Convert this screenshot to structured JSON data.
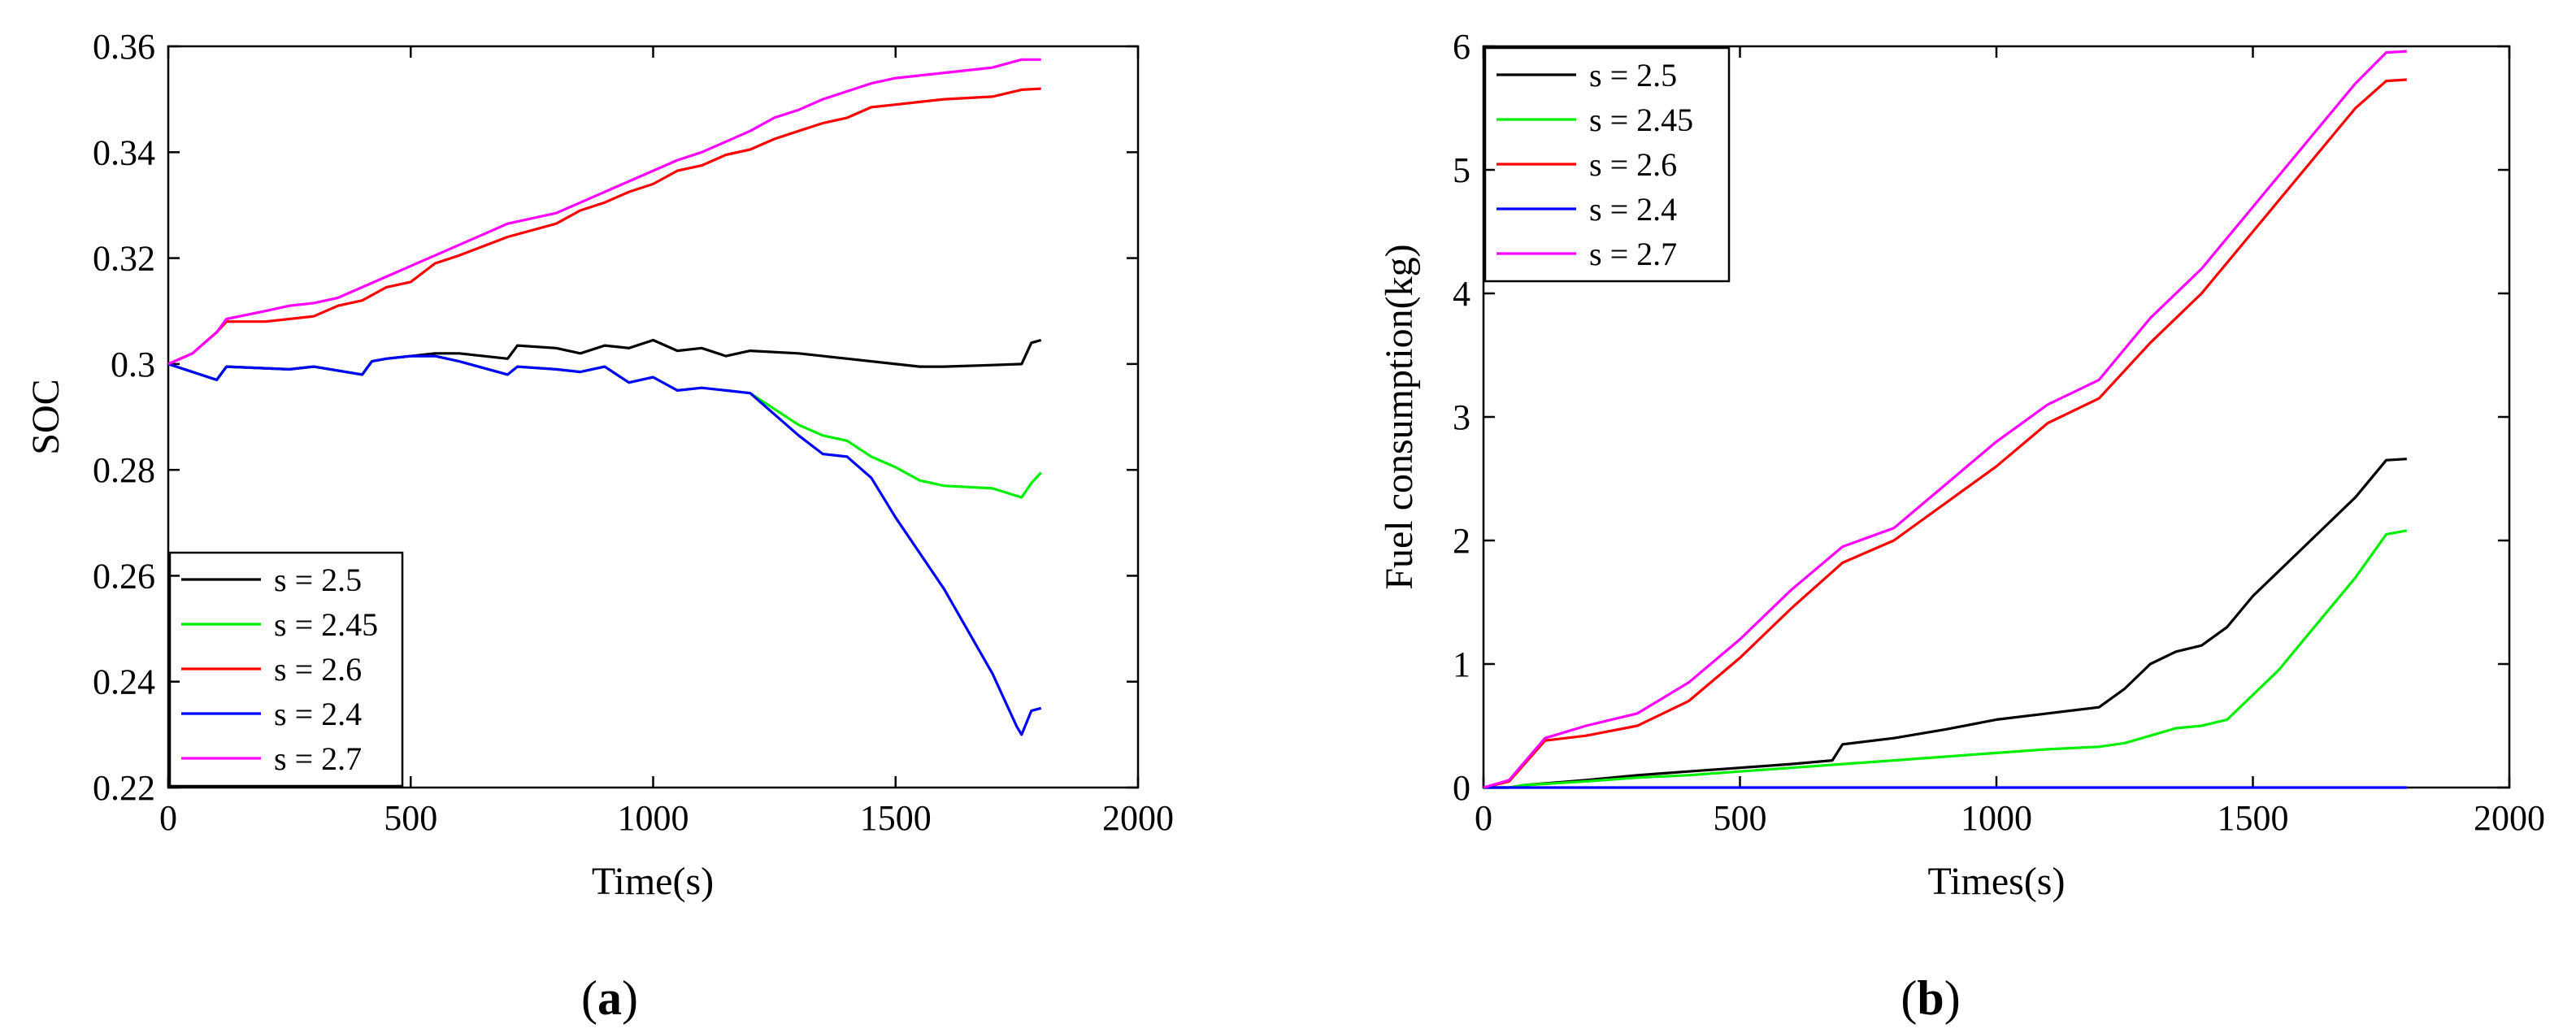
{
  "chart_data": [
    {
      "type": "line",
      "panel": "a",
      "caption_open": "(",
      "caption_letter": "a",
      "caption_close": ")",
      "xlabel": "Time(s)",
      "ylabel": "SOC",
      "xlim": [
        0,
        2000
      ],
      "ylim": [
        0.22,
        0.36
      ],
      "xticks": [
        0,
        500,
        1000,
        1500,
        2000
      ],
      "yticks": [
        0.22,
        0.24,
        0.26,
        0.28,
        0.3,
        0.32,
        0.34,
        0.36
      ],
      "xtick_labels": [
        "0",
        "500",
        "1000",
        "1500",
        "2000"
      ],
      "ytick_labels": [
        "0.22",
        "0.24",
        "0.26",
        "0.28",
        "0.3",
        "0.32",
        "0.34",
        "0.36"
      ],
      "legend_position": "bottom-left",
      "series": [
        {
          "name": "s = 2.5",
          "color": "#000000",
          "x": [
            0,
            100,
            120,
            250,
            300,
            400,
            420,
            450,
            500,
            550,
            600,
            700,
            720,
            800,
            850,
            900,
            950,
            1000,
            1050,
            1100,
            1150,
            1200,
            1300,
            1400,
            1500,
            1550,
            1600,
            1700,
            1760,
            1780,
            1800
          ],
          "y": [
            0.3,
            0.297,
            0.2995,
            0.299,
            0.2995,
            0.298,
            0.3005,
            0.301,
            0.3015,
            0.302,
            0.302,
            0.301,
            0.3035,
            0.303,
            0.302,
            0.3035,
            0.303,
            0.3045,
            0.3025,
            0.303,
            0.3015,
            0.3025,
            0.302,
            0.301,
            0.3,
            0.2995,
            0.2995,
            0.2998,
            0.3,
            0.304,
            0.3045
          ]
        },
        {
          "name": "s = 2.45",
          "color": "#00ee00",
          "x": [
            0,
            100,
            120,
            250,
            300,
            400,
            420,
            450,
            500,
            550,
            600,
            700,
            720,
            800,
            850,
            900,
            950,
            1000,
            1050,
            1100,
            1150,
            1200,
            1250,
            1300,
            1350,
            1400,
            1450,
            1500,
            1550,
            1600,
            1700,
            1760,
            1780,
            1800
          ],
          "y": [
            0.3,
            0.297,
            0.2995,
            0.299,
            0.2995,
            0.298,
            0.3005,
            0.301,
            0.3015,
            0.3015,
            0.3005,
            0.298,
            0.2995,
            0.299,
            0.2985,
            0.2995,
            0.2965,
            0.2975,
            0.295,
            0.2955,
            0.295,
            0.2945,
            0.2915,
            0.2885,
            0.2865,
            0.2855,
            0.2825,
            0.2805,
            0.278,
            0.277,
            0.2765,
            0.2748,
            0.2775,
            0.2795
          ]
        },
        {
          "name": "s = 2.6",
          "color": "#ff0000",
          "x": [
            0,
            50,
            100,
            120,
            200,
            300,
            350,
            400,
            450,
            500,
            550,
            600,
            700,
            800,
            850,
            900,
            950,
            1000,
            1050,
            1100,
            1150,
            1200,
            1250,
            1300,
            1350,
            1400,
            1450,
            1500,
            1550,
            1600,
            1700,
            1760,
            1800
          ],
          "y": [
            0.3,
            0.302,
            0.306,
            0.308,
            0.308,
            0.309,
            0.311,
            0.312,
            0.3145,
            0.3155,
            0.319,
            0.3205,
            0.324,
            0.3265,
            0.329,
            0.3305,
            0.3325,
            0.334,
            0.3365,
            0.3375,
            0.3395,
            0.3405,
            0.3425,
            0.344,
            0.3455,
            0.3465,
            0.3485,
            0.349,
            0.3495,
            0.35,
            0.3505,
            0.3518,
            0.352
          ]
        },
        {
          "name": "s = 2.4",
          "color": "#0000ff",
          "x": [
            0,
            100,
            120,
            250,
            300,
            400,
            420,
            450,
            500,
            550,
            600,
            700,
            720,
            800,
            850,
            900,
            950,
            1000,
            1050,
            1100,
            1150,
            1200,
            1250,
            1300,
            1350,
            1400,
            1450,
            1500,
            1600,
            1700,
            1750,
            1760,
            1780,
            1800
          ],
          "y": [
            0.3,
            0.297,
            0.2995,
            0.299,
            0.2995,
            0.298,
            0.3005,
            0.301,
            0.3015,
            0.3015,
            0.3005,
            0.298,
            0.2995,
            0.299,
            0.2985,
            0.2995,
            0.2965,
            0.2975,
            0.295,
            0.2955,
            0.295,
            0.2945,
            0.2905,
            0.2865,
            0.283,
            0.2825,
            0.2785,
            0.271,
            0.2575,
            0.2415,
            0.2315,
            0.23,
            0.2345,
            0.235
          ]
        },
        {
          "name": "s = 2.7",
          "color": "#ff00ff",
          "x": [
            0,
            50,
            100,
            120,
            200,
            250,
            300,
            350,
            400,
            450,
            500,
            550,
            600,
            650,
            700,
            800,
            850,
            900,
            950,
            1000,
            1050,
            1100,
            1150,
            1200,
            1250,
            1300,
            1350,
            1400,
            1450,
            1500,
            1600,
            1700,
            1760,
            1800
          ],
          "y": [
            0.3,
            0.302,
            0.306,
            0.3085,
            0.31,
            0.311,
            0.3115,
            0.3125,
            0.3145,
            0.3165,
            0.3185,
            0.3205,
            0.3225,
            0.3245,
            0.3265,
            0.3285,
            0.3305,
            0.3325,
            0.3345,
            0.3365,
            0.3385,
            0.34,
            0.342,
            0.344,
            0.3465,
            0.348,
            0.35,
            0.3515,
            0.353,
            0.354,
            0.355,
            0.356,
            0.3575,
            0.3575
          ]
        }
      ]
    },
    {
      "type": "line",
      "panel": "b",
      "caption_open": "(",
      "caption_letter": "b",
      "caption_close": ")",
      "xlabel": "Times(s)",
      "ylabel": "Fuel consumption(kg)",
      "xlim": [
        0,
        2000
      ],
      "ylim": [
        0,
        6
      ],
      "xticks": [
        0,
        500,
        1000,
        1500,
        2000
      ],
      "yticks": [
        0,
        1,
        2,
        3,
        4,
        5,
        6
      ],
      "xtick_labels": [
        "0",
        "500",
        "1000",
        "1500",
        "2000"
      ],
      "ytick_labels": [
        "0",
        "1",
        "2",
        "3",
        "4",
        "5",
        "6"
      ],
      "legend_position": "top-left",
      "series": [
        {
          "name": "s = 2.5",
          "color": "#000000",
          "x": [
            0,
            50,
            80,
            200,
            300,
            400,
            500,
            600,
            680,
            700,
            800,
            900,
            1000,
            1100,
            1200,
            1250,
            1300,
            1350,
            1400,
            1450,
            1500,
            1600,
            1700,
            1760,
            1800
          ],
          "y": [
            0,
            0,
            0.02,
            0.06,
            0.1,
            0.13,
            0.16,
            0.19,
            0.22,
            0.35,
            0.4,
            0.47,
            0.55,
            0.6,
            0.65,
            0.8,
            1.0,
            1.1,
            1.15,
            1.3,
            1.55,
            1.95,
            2.35,
            2.65,
            2.66
          ]
        },
        {
          "name": "s = 2.45",
          "color": "#00ee00",
          "x": [
            0,
            50,
            80,
            200,
            300,
            400,
            500,
            600,
            700,
            800,
            900,
            1000,
            1100,
            1200,
            1250,
            1300,
            1350,
            1400,
            1450,
            1500,
            1550,
            1600,
            1700,
            1760,
            1800
          ],
          "y": [
            0,
            0,
            0.02,
            0.05,
            0.08,
            0.1,
            0.13,
            0.16,
            0.19,
            0.22,
            0.25,
            0.28,
            0.31,
            0.33,
            0.36,
            0.42,
            0.48,
            0.5,
            0.55,
            0.75,
            0.95,
            1.2,
            1.7,
            2.05,
            2.08
          ]
        },
        {
          "name": "s = 2.6",
          "color": "#ff0000",
          "x": [
            0,
            50,
            120,
            200,
            300,
            400,
            500,
            600,
            700,
            800,
            900,
            1000,
            1100,
            1200,
            1300,
            1400,
            1500,
            1600,
            1700,
            1760,
            1800
          ],
          "y": [
            0,
            0.05,
            0.38,
            0.42,
            0.5,
            0.7,
            1.05,
            1.45,
            1.82,
            2.0,
            2.3,
            2.6,
            2.95,
            3.15,
            3.6,
            4.0,
            4.5,
            5.0,
            5.5,
            5.72,
            5.73
          ]
        },
        {
          "name": "s = 2.4",
          "color": "#0000ff",
          "x": [
            0,
            1800
          ],
          "y": [
            0,
            0
          ]
        },
        {
          "name": "s = 2.7",
          "color": "#ff00ff",
          "x": [
            0,
            50,
            120,
            200,
            300,
            400,
            500,
            600,
            700,
            800,
            900,
            1000,
            1100,
            1200,
            1300,
            1400,
            1500,
            1600,
            1700,
            1760,
            1800
          ],
          "y": [
            0,
            0.06,
            0.4,
            0.5,
            0.6,
            0.85,
            1.2,
            1.6,
            1.95,
            2.1,
            2.45,
            2.8,
            3.1,
            3.3,
            3.8,
            4.2,
            4.7,
            5.2,
            5.7,
            5.95,
            5.96
          ]
        }
      ]
    }
  ]
}
